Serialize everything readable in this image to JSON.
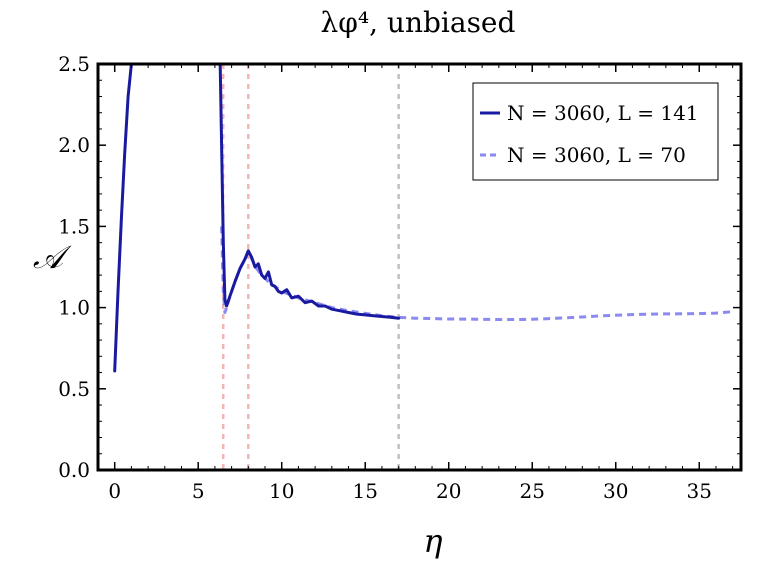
{
  "chart_data": {
    "type": "line",
    "title": "λφ⁴, unbiased",
    "xlabel": "η",
    "ylabel": "𝒜",
    "xlim": [
      -1,
      37.5
    ],
    "ylim": [
      0,
      2.5
    ],
    "xticks": [
      0,
      5,
      10,
      15,
      20,
      25,
      30,
      35
    ],
    "yticks": [
      0.0,
      0.5,
      1.0,
      1.5,
      2.0,
      2.5
    ],
    "ytick_labels": [
      "0.0",
      "0.5",
      "1.0",
      "1.5",
      "2.0",
      "2.5"
    ],
    "grid": false,
    "legend_position": "top-right",
    "series": [
      {
        "name": "N = 3060, L = 141",
        "style": "solid",
        "color": "#1a1aa0",
        "x": [
          0.0,
          0.2,
          0.4,
          0.6,
          0.8,
          1.0,
          1.1,
          6.3,
          6.4,
          6.5,
          6.6,
          6.7,
          6.9,
          7.2,
          7.5,
          7.8,
          8.0,
          8.2,
          8.4,
          8.6,
          8.8,
          9.0,
          9.2,
          9.4,
          9.6,
          9.8,
          10.0,
          10.3,
          10.6,
          11.0,
          11.4,
          11.8,
          12.2,
          12.6,
          13.0,
          13.5,
          14.0,
          14.5,
          15.0,
          15.5,
          16.0,
          16.5,
          17.0
        ],
        "y": [
          0.61,
          1.1,
          1.55,
          1.95,
          2.3,
          2.5,
          2.6,
          2.6,
          2.0,
          1.4,
          1.05,
          1.01,
          1.07,
          1.16,
          1.24,
          1.3,
          1.35,
          1.31,
          1.25,
          1.27,
          1.2,
          1.18,
          1.22,
          1.14,
          1.13,
          1.1,
          1.09,
          1.11,
          1.06,
          1.07,
          1.03,
          1.04,
          1.01,
          1.01,
          0.99,
          0.98,
          0.97,
          0.96,
          0.955,
          0.95,
          0.945,
          0.94,
          0.935
        ]
      },
      {
        "name": "N = 3060, L = 70",
        "style": "dashed",
        "color": "#8a8af0",
        "x": [
          6.4,
          6.5,
          6.6,
          6.7,
          6.9,
          7.2,
          7.5,
          7.8,
          8.0,
          8.2,
          8.5,
          8.8,
          9.2,
          9.6,
          10.0,
          10.5,
          11.0,
          12.0,
          13.0,
          14.0,
          15.0,
          16.0,
          17.0,
          18.0,
          19.0,
          20.0,
          21.0,
          22.0,
          23.0,
          24.0,
          25.0,
          26.0,
          27.0,
          28.0,
          29.0,
          30.0,
          31.0,
          32.0,
          33.0,
          34.0,
          35.0,
          36.0,
          37.0
        ],
        "y": [
          1.5,
          1.1,
          0.97,
          1.0,
          1.07,
          1.16,
          1.24,
          1.3,
          1.34,
          1.3,
          1.24,
          1.2,
          1.16,
          1.13,
          1.1,
          1.08,
          1.06,
          1.03,
          1.0,
          0.98,
          0.965,
          0.95,
          0.94,
          0.935,
          0.932,
          0.93,
          0.929,
          0.928,
          0.927,
          0.927,
          0.928,
          0.932,
          0.937,
          0.942,
          0.948,
          0.953,
          0.957,
          0.96,
          0.961,
          0.962,
          0.963,
          0.966,
          0.975
        ]
      }
    ],
    "vlines": [
      {
        "x": 6.5,
        "color": "#f5b5b5"
      },
      {
        "x": 8.0,
        "color": "#f5b5b5"
      },
      {
        "x": 17.0,
        "color": "#c0c0c0"
      }
    ]
  }
}
